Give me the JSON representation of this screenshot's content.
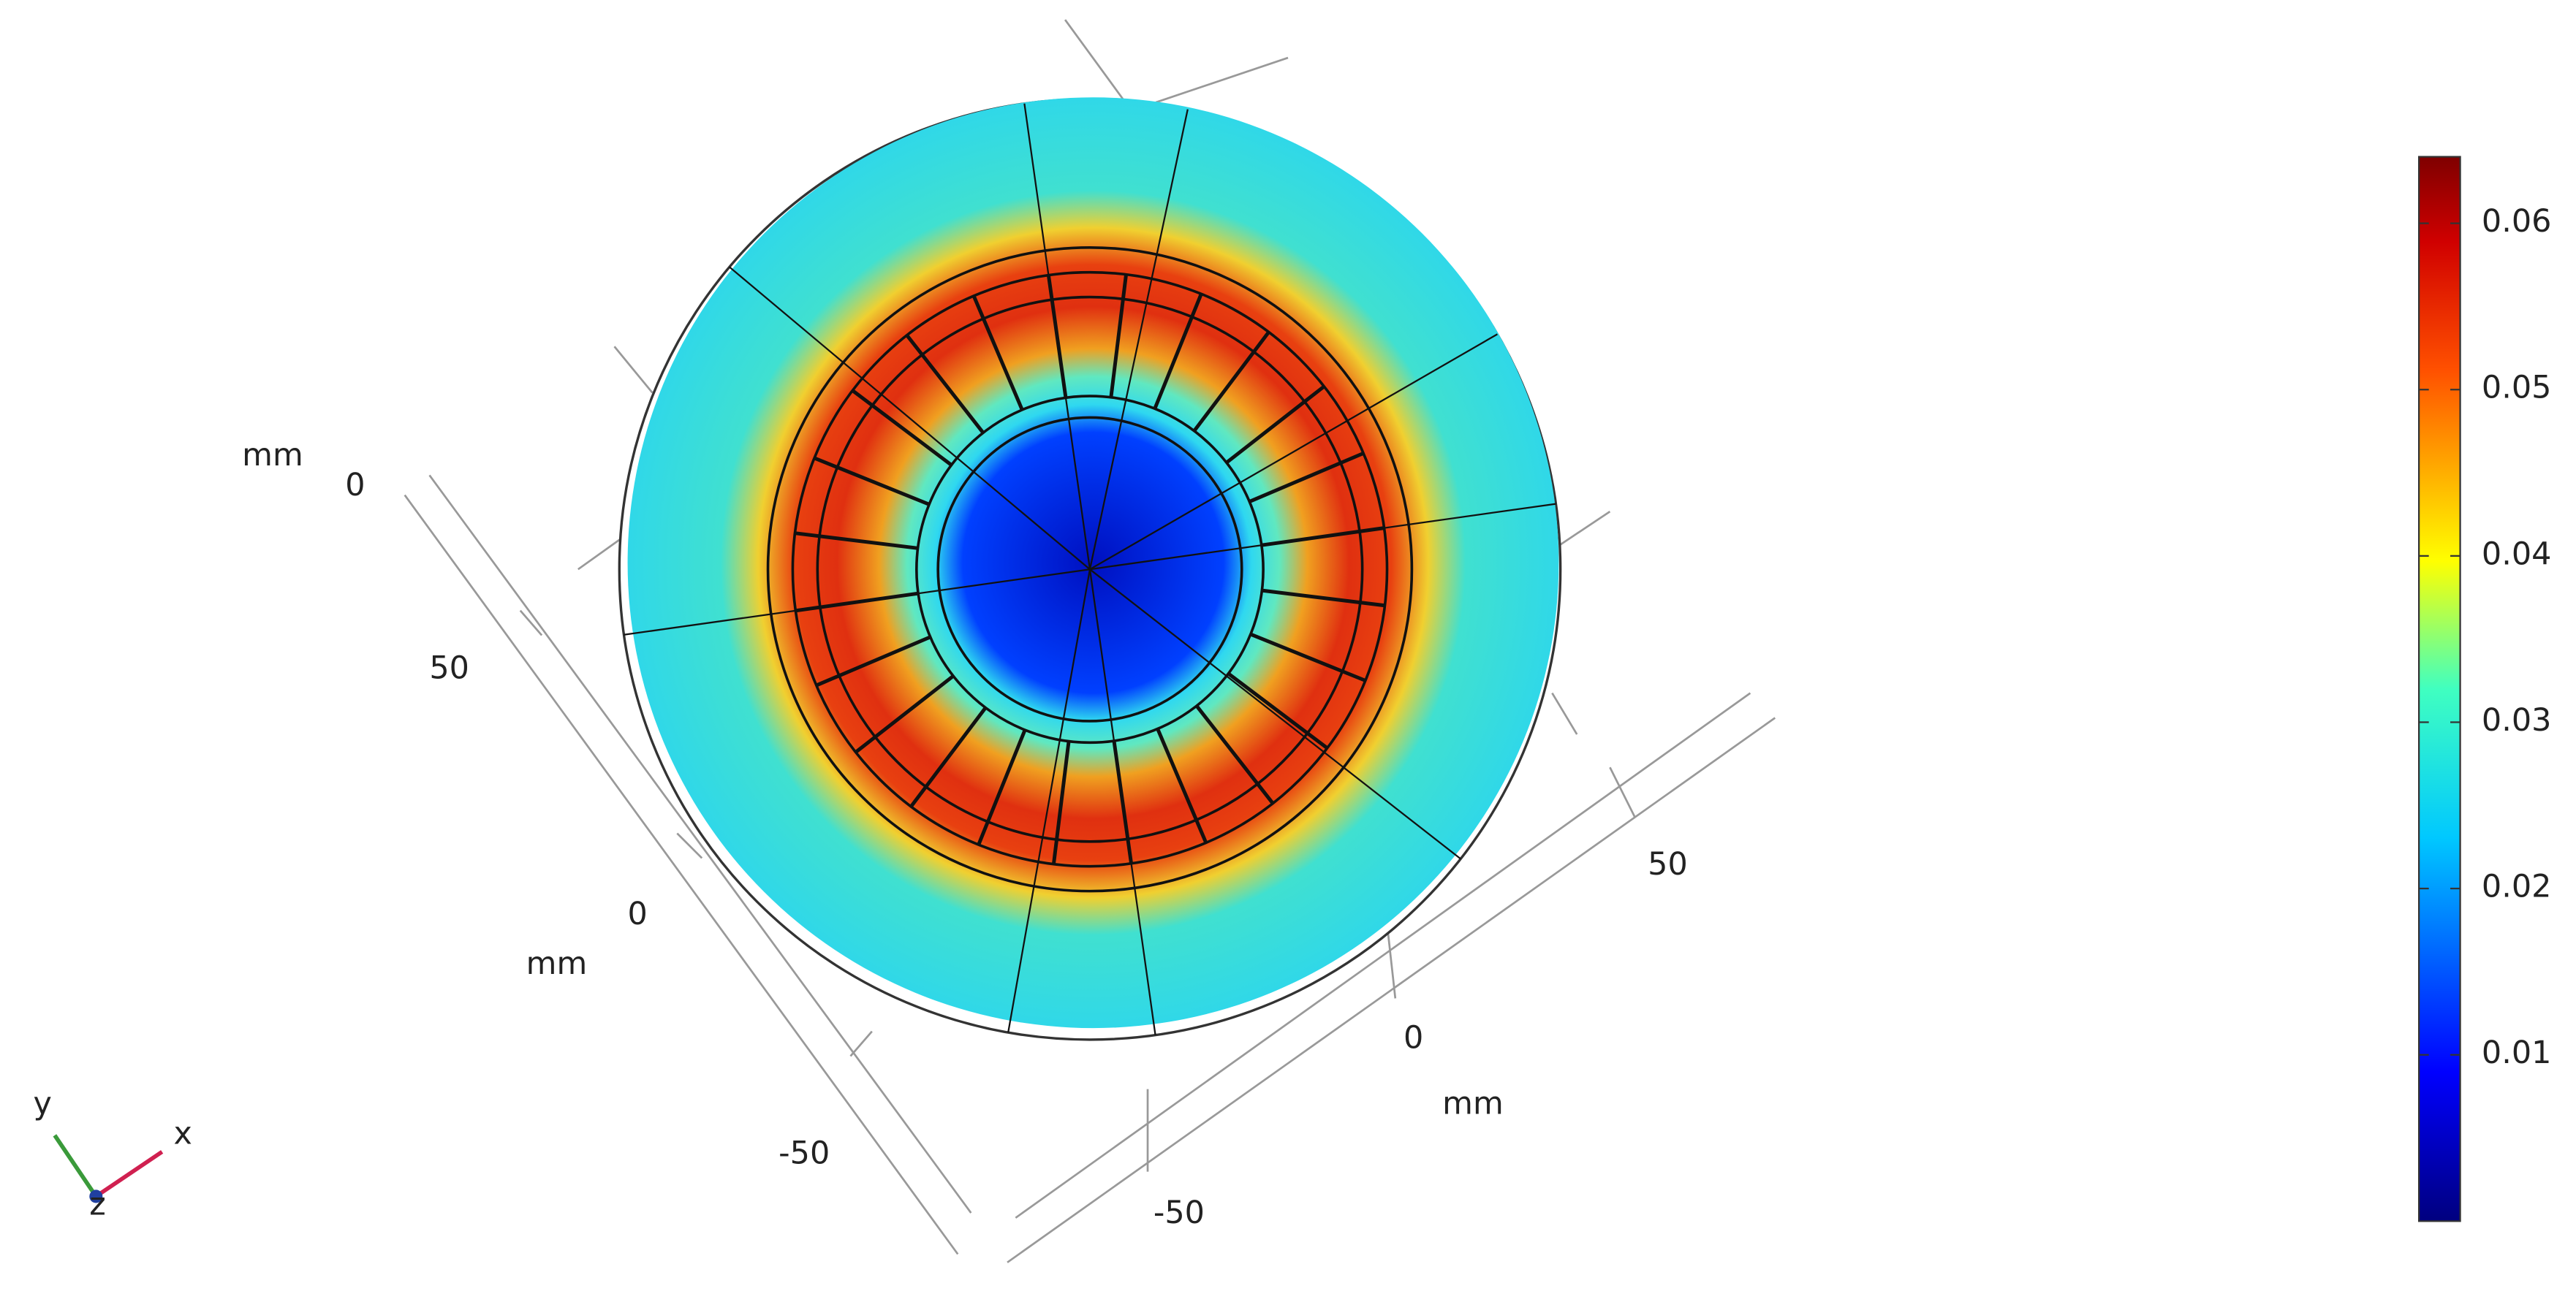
{
  "plot": {
    "axes": {
      "left": {
        "unit": "mm",
        "ticks": [
          "0",
          "50"
        ]
      },
      "front": {
        "unit": "mm",
        "ticks": [
          "0",
          "-50"
        ]
      },
      "right": {
        "unit": "mm",
        "ticks": [
          "50",
          "0",
          "-50"
        ]
      }
    },
    "triad": {
      "y": "y",
      "x": "x",
      "z": "z"
    },
    "colorbar": {
      "range": [
        0,
        0.064
      ],
      "ticks": [
        0.01,
        0.02,
        0.03,
        0.04,
        0.05,
        0.06
      ]
    }
  }
}
